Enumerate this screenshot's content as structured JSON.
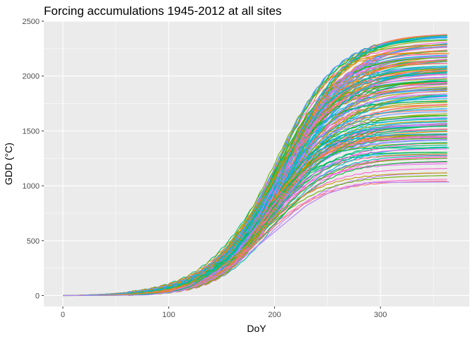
{
  "chart_data": {
    "type": "line",
    "title": "Forcing accumulations 1945-2012 at all sites",
    "xlabel": "DoY",
    "ylabel": "GDD (°C)",
    "xlim": [
      -18,
      384
    ],
    "ylim": [
      -100,
      2500
    ],
    "x_ticks": [
      0,
      100,
      200,
      300
    ],
    "y_ticks": [
      0,
      500,
      1000,
      1500,
      2000,
      2500
    ],
    "grid": true,
    "panel_background": "#ebebeb",
    "legend": "none",
    "palette": [
      "#f8766d",
      "#ff6ec4",
      "#e58700",
      "#c99800",
      "#a3a500",
      "#6bb100",
      "#00ba38",
      "#00bf7d",
      "#00c0af",
      "#00bcd8",
      "#00b0f6",
      "#619cff",
      "#b983ff",
      "#e76bf3",
      "#fd61d1"
    ],
    "series_summary": {
      "count": 180,
      "x_range": [
        0,
        365
      ],
      "final_gdd_min": 1030,
      "final_gdd_max": 2390,
      "onset_doy_range": [
        60,
        125
      ],
      "plateau_doy_range": [
        240,
        310
      ]
    },
    "reference_series": [
      {
        "x": [
          0,
          50,
          80,
          100,
          120,
          140,
          160,
          180,
          200,
          220,
          240,
          260,
          280,
          300,
          365
        ],
        "y": [
          0,
          2,
          15,
          40,
          110,
          260,
          480,
          760,
          1060,
          1400,
          1720,
          1990,
          2150,
          2200,
          2205
        ]
      },
      {
        "x": [
          0,
          60,
          100,
          120,
          140,
          160,
          180,
          200,
          220,
          240,
          260,
          280,
          300,
          365
        ],
        "y": [
          0,
          3,
          25,
          80,
          200,
          380,
          610,
          860,
          1080,
          1230,
          1310,
          1340,
          1345,
          1346
        ]
      },
      {
        "x": [
          0,
          80,
          110,
          130,
          150,
          170,
          190,
          210,
          230,
          250,
          270,
          290,
          365
        ],
        "y": [
          0,
          5,
          40,
          100,
          200,
          340,
          500,
          660,
          820,
          930,
          990,
          1030,
          1035
        ]
      }
    ]
  }
}
